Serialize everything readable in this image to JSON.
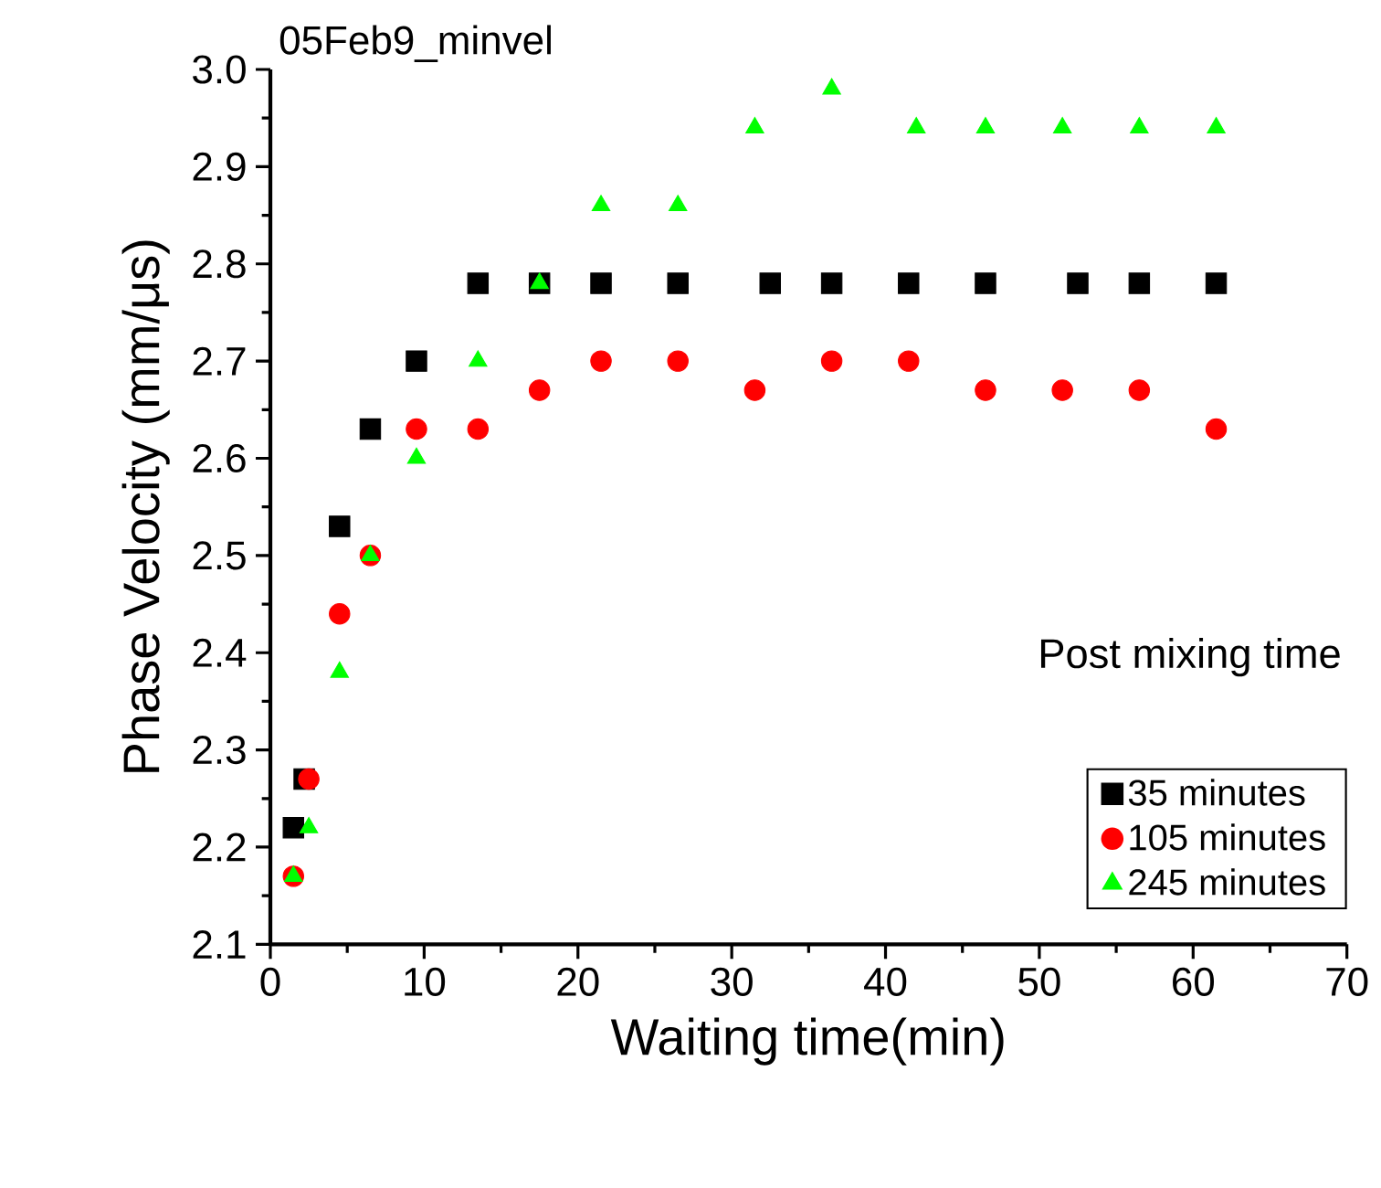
{
  "chart_data": {
    "type": "scatter",
    "title": "05Feb9_minvel",
    "xlabel": "Waiting time(min)",
    "ylabel": "Phase Velocity (mm/μs)",
    "legend_title": "Post mixing time",
    "legend": "bottom right",
    "grid": false,
    "xlim": [
      0,
      70
    ],
    "xticks": [
      0,
      10,
      20,
      30,
      40,
      50,
      60,
      70
    ],
    "ylim": [
      2.1,
      3.0
    ],
    "yticks": [
      {
        "value": 2.1,
        "label": "2.1"
      },
      {
        "value": 2.2,
        "label": "2.2"
      },
      {
        "value": 2.3,
        "label": "2.3"
      },
      {
        "value": 2.4,
        "label": "2.4"
      },
      {
        "value": 2.5,
        "label": "2.5"
      },
      {
        "value": 2.6,
        "label": "2.6"
      },
      {
        "value": 2.7,
        "label": "2.7"
      },
      {
        "value": 2.8,
        "label": "2.8"
      },
      {
        "value": 2.9,
        "label": "2.9"
      },
      {
        "value": 3.0,
        "label": "3.0"
      }
    ],
    "series": [
      {
        "name": "35 minutes",
        "color": "#000000",
        "marker": "square",
        "x": [
          1.5,
          2.2,
          4.5,
          6.5,
          9.5,
          13.5,
          17.5,
          21.5,
          26.5,
          32.5,
          36.5,
          41.5,
          46.5,
          52.5,
          56.5,
          61.5
        ],
        "values": [
          2.22,
          2.27,
          2.53,
          2.63,
          2.7,
          2.78,
          2.78,
          2.78,
          2.78,
          2.78,
          2.78,
          2.78,
          2.78,
          2.78,
          2.78,
          2.78
        ]
      },
      {
        "name": "105 minutes",
        "color": "#ff0000",
        "marker": "circle",
        "x": [
          1.5,
          2.5,
          4.5,
          6.5,
          9.5,
          13.5,
          17.5,
          21.5,
          26.5,
          31.5,
          36.5,
          41.5,
          46.5,
          51.5,
          56.5,
          61.5
        ],
        "values": [
          2.17,
          2.27,
          2.44,
          2.5,
          2.63,
          2.63,
          2.67,
          2.7,
          2.7,
          2.67,
          2.7,
          2.7,
          2.67,
          2.67,
          2.67,
          2.63
        ]
      },
      {
        "name": "245 minutes",
        "color": "#00ff00",
        "marker": "triangle",
        "x": [
          1.5,
          2.5,
          4.5,
          6.5,
          9.5,
          13.5,
          17.5,
          21.5,
          26.5,
          31.5,
          36.5,
          42,
          46.5,
          51.5,
          56.5,
          61.5
        ],
        "values": [
          2.17,
          2.22,
          2.38,
          2.5,
          2.6,
          2.7,
          2.78,
          2.86,
          2.86,
          2.94,
          2.98,
          2.94,
          2.94,
          2.94,
          2.94,
          2.94
        ]
      }
    ]
  }
}
